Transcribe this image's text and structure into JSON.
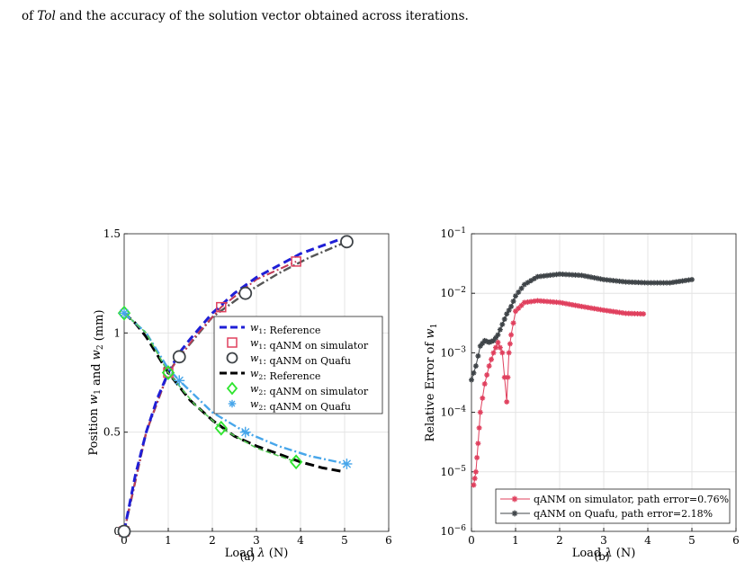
{
  "intro": {
    "line_em": "Tol",
    "line_pre": "of ",
    "line_post": " and the accuracy of the solution vector obtained across iterations."
  },
  "chart_data": [
    {
      "type": "line",
      "caption": "(a)",
      "xlabel": "Load λ (N)",
      "ylabel": "Position w1 and w2 (mm)",
      "xlim": [
        0,
        6
      ],
      "ylim": [
        0,
        1.5
      ],
      "xticks": [
        "0",
        "1",
        "2",
        "3",
        "4",
        "5",
        "6"
      ],
      "yticks": [
        "0",
        "0.5",
        "1",
        "1.5"
      ],
      "grid": true,
      "legend_position": "center-right",
      "legend": [
        {
          "label": "w1: Reference",
          "style": "dashed",
          "color": "#1f1fd6",
          "marker": "none"
        },
        {
          "label": "w1: qANM on simulator",
          "style": "none",
          "color": "#e0405e",
          "marker": "square"
        },
        {
          "label": "w1: qANM on Quafu",
          "style": "none",
          "color": "#3f4448",
          "marker": "circle"
        },
        {
          "label": "w2: Reference",
          "style": "dashed",
          "color": "#000000",
          "marker": "none"
        },
        {
          "label": "w2: qANM on simulator",
          "style": "none",
          "color": "#2ee52e",
          "marker": "diamond"
        },
        {
          "label": "w2: qANM on Quafu",
          "style": "none",
          "color": "#47a6ea",
          "marker": "asterisk"
        }
      ],
      "series": [
        {
          "name": "w1: Reference",
          "color": "#1f1fd6",
          "x": [
            0,
            0.25,
            0.5,
            0.75,
            1,
            1.25,
            1.5,
            2,
            2.5,
            3,
            3.5,
            4,
            4.5,
            5
          ],
          "y": [
            0,
            0.28,
            0.5,
            0.67,
            0.8,
            0.9,
            0.97,
            1.1,
            1.2,
            1.28,
            1.34,
            1.4,
            1.44,
            1.48
          ]
        },
        {
          "name": "w1: qANM on simulator",
          "color": "#e0405e",
          "x": [
            0,
            1,
            2.2,
            3.9
          ],
          "y": [
            0,
            0.8,
            1.13,
            1.36
          ]
        },
        {
          "name": "w1: qANM on Quafu",
          "color": "#3f4448",
          "x": [
            0,
            1.25,
            2.75,
            5.05
          ],
          "y": [
            0,
            0.88,
            1.2,
            1.46
          ]
        },
        {
          "name": "w2: Reference",
          "color": "#000000",
          "x": [
            0,
            0.25,
            0.5,
            1,
            1.5,
            2,
            2.5,
            3,
            3.5,
            4,
            4.5,
            5
          ],
          "y": [
            1.1,
            1.05,
            0.98,
            0.8,
            0.66,
            0.56,
            0.48,
            0.43,
            0.39,
            0.35,
            0.32,
            0.3
          ]
        },
        {
          "name": "w2: qANM on simulator",
          "color": "#2ee52e",
          "x": [
            0,
            1,
            2.2,
            3.9
          ],
          "y": [
            1.1,
            0.8,
            0.52,
            0.35
          ]
        },
        {
          "name": "w2: qANM on Quafu",
          "color": "#47a6ea",
          "x": [
            0,
            1.25,
            2.75,
            5.05
          ],
          "y": [
            1.1,
            0.76,
            0.5,
            0.34
          ]
        }
      ]
    },
    {
      "type": "line",
      "caption": "(b)",
      "xlabel": "Load λ (N)",
      "ylabel": "Relative Error of w1",
      "scale_y": "log",
      "xlim": [
        0,
        6
      ],
      "ylim": [
        1e-06,
        0.1
      ],
      "xticks": [
        "0",
        "1",
        "2",
        "3",
        "4",
        "5",
        "6"
      ],
      "yticks": [
        "10^-6",
        "10^-5",
        "10^-4",
        "10^-3",
        "10^-2",
        "10^-1"
      ],
      "grid": true,
      "legend_position": "bottom-right",
      "legend": [
        {
          "label": "qANM on simulator, path error=0.76%",
          "color": "#e0405e",
          "marker": "asterisk"
        },
        {
          "label": "qANM on Quafu, path error=2.18%",
          "color": "#3f4448",
          "marker": "asterisk"
        }
      ],
      "series": [
        {
          "name": "qANM on simulator, path error=0.76%",
          "color": "#e0405e",
          "x": [
            0.05,
            0.1,
            0.15,
            0.2,
            0.3,
            0.4,
            0.5,
            0.6,
            0.7,
            0.8,
            0.85,
            0.9,
            1.0,
            1.2,
            1.5,
            2.0,
            2.5,
            3.0,
            3.5,
            3.9
          ],
          "y": [
            6e-06,
            1e-05,
            3e-05,
            0.0001,
            0.0003,
            0.0006,
            0.001,
            0.0015,
            0.001,
            0.00015,
            0.001,
            0.002,
            0.005,
            0.007,
            0.0075,
            0.007,
            0.006,
            0.0052,
            0.0046,
            0.0045
          ]
        },
        {
          "name": "qANM on Quafu, path error=2.18%",
          "color": "#3f4448",
          "x": [
            0,
            0.1,
            0.2,
            0.3,
            0.4,
            0.5,
            0.6,
            0.7,
            0.8,
            0.9,
            1.0,
            1.2,
            1.5,
            2.0,
            2.5,
            3.0,
            3.5,
            4.0,
            4.5,
            5.0
          ],
          "y": [
            0.00035,
            0.0006,
            0.0013,
            0.0016,
            0.0015,
            0.0016,
            0.002,
            0.003,
            0.0045,
            0.006,
            0.009,
            0.014,
            0.019,
            0.021,
            0.02,
            0.017,
            0.0155,
            0.015,
            0.015,
            0.017
          ]
        }
      ]
    }
  ]
}
